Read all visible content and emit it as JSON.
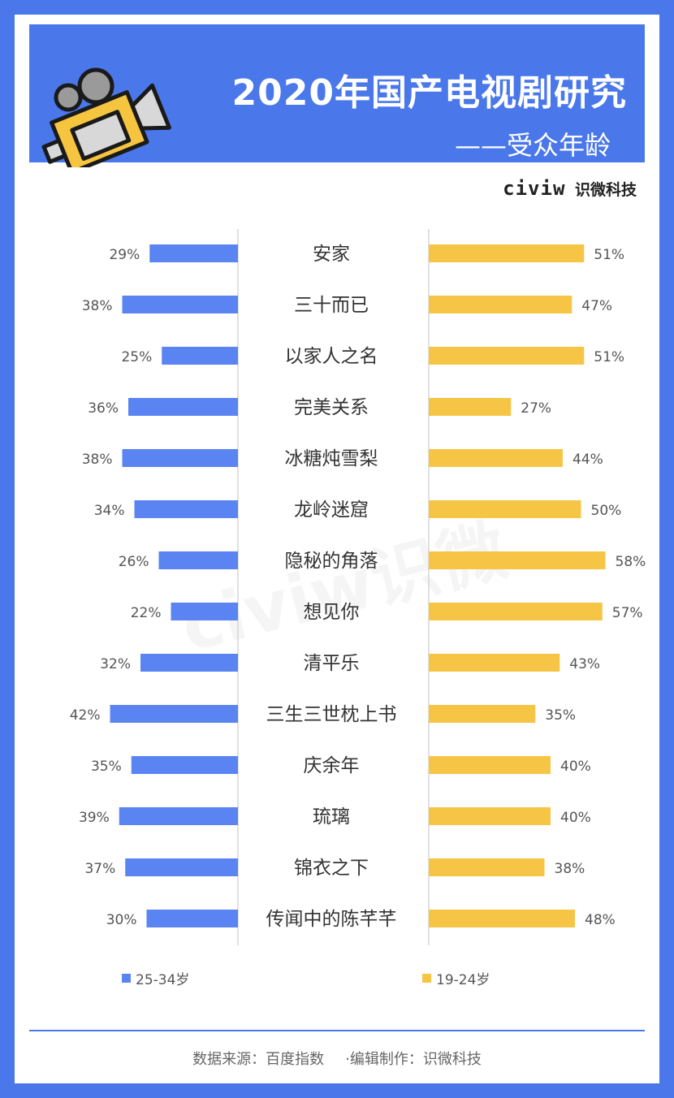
{
  "header": {
    "title": "2020年国产电视剧研究",
    "subtitle": "——受众年龄"
  },
  "brand": {
    "logo_text": "civiw",
    "name": "识微科技"
  },
  "watermark": "civiw识微",
  "footer": {
    "source": "数据来源：百度指数",
    "editor": "·编辑制作：识微科技"
  },
  "colors": {
    "accent_blue": "#4a77ea",
    "bar_blue": "#5a84f2",
    "bar_yellow": "#f7c545",
    "camera_yellow": "#f5c540"
  },
  "icons": {
    "camera": "film-camera-icon"
  },
  "chart_data": {
    "type": "bar",
    "orientation": "horizontal-butterfly",
    "categories": [
      "安家",
      "三十而已",
      "以家人之名",
      "完美关系",
      "冰糖炖雪梨",
      "龙岭迷窟",
      "隐秘的角落",
      "想见你",
      "清平乐",
      "三生三世枕上书",
      "庆余年",
      "琉璃",
      "锦衣之下",
      "传闻中的陈芊芊"
    ],
    "series": [
      {
        "name": "25-34岁",
        "side": "left",
        "color": "#5a84f2",
        "values": [
          29,
          38,
          25,
          36,
          38,
          34,
          26,
          22,
          32,
          42,
          35,
          39,
          37,
          30
        ]
      },
      {
        "name": "19-24岁",
        "side": "right",
        "color": "#f7c545",
        "values": [
          51,
          47,
          51,
          27,
          44,
          50,
          58,
          57,
          43,
          35,
          40,
          40,
          38,
          48
        ]
      }
    ],
    "unit": "%",
    "xlim": [
      0,
      58
    ],
    "grid": false,
    "legend_position": "bottom"
  }
}
